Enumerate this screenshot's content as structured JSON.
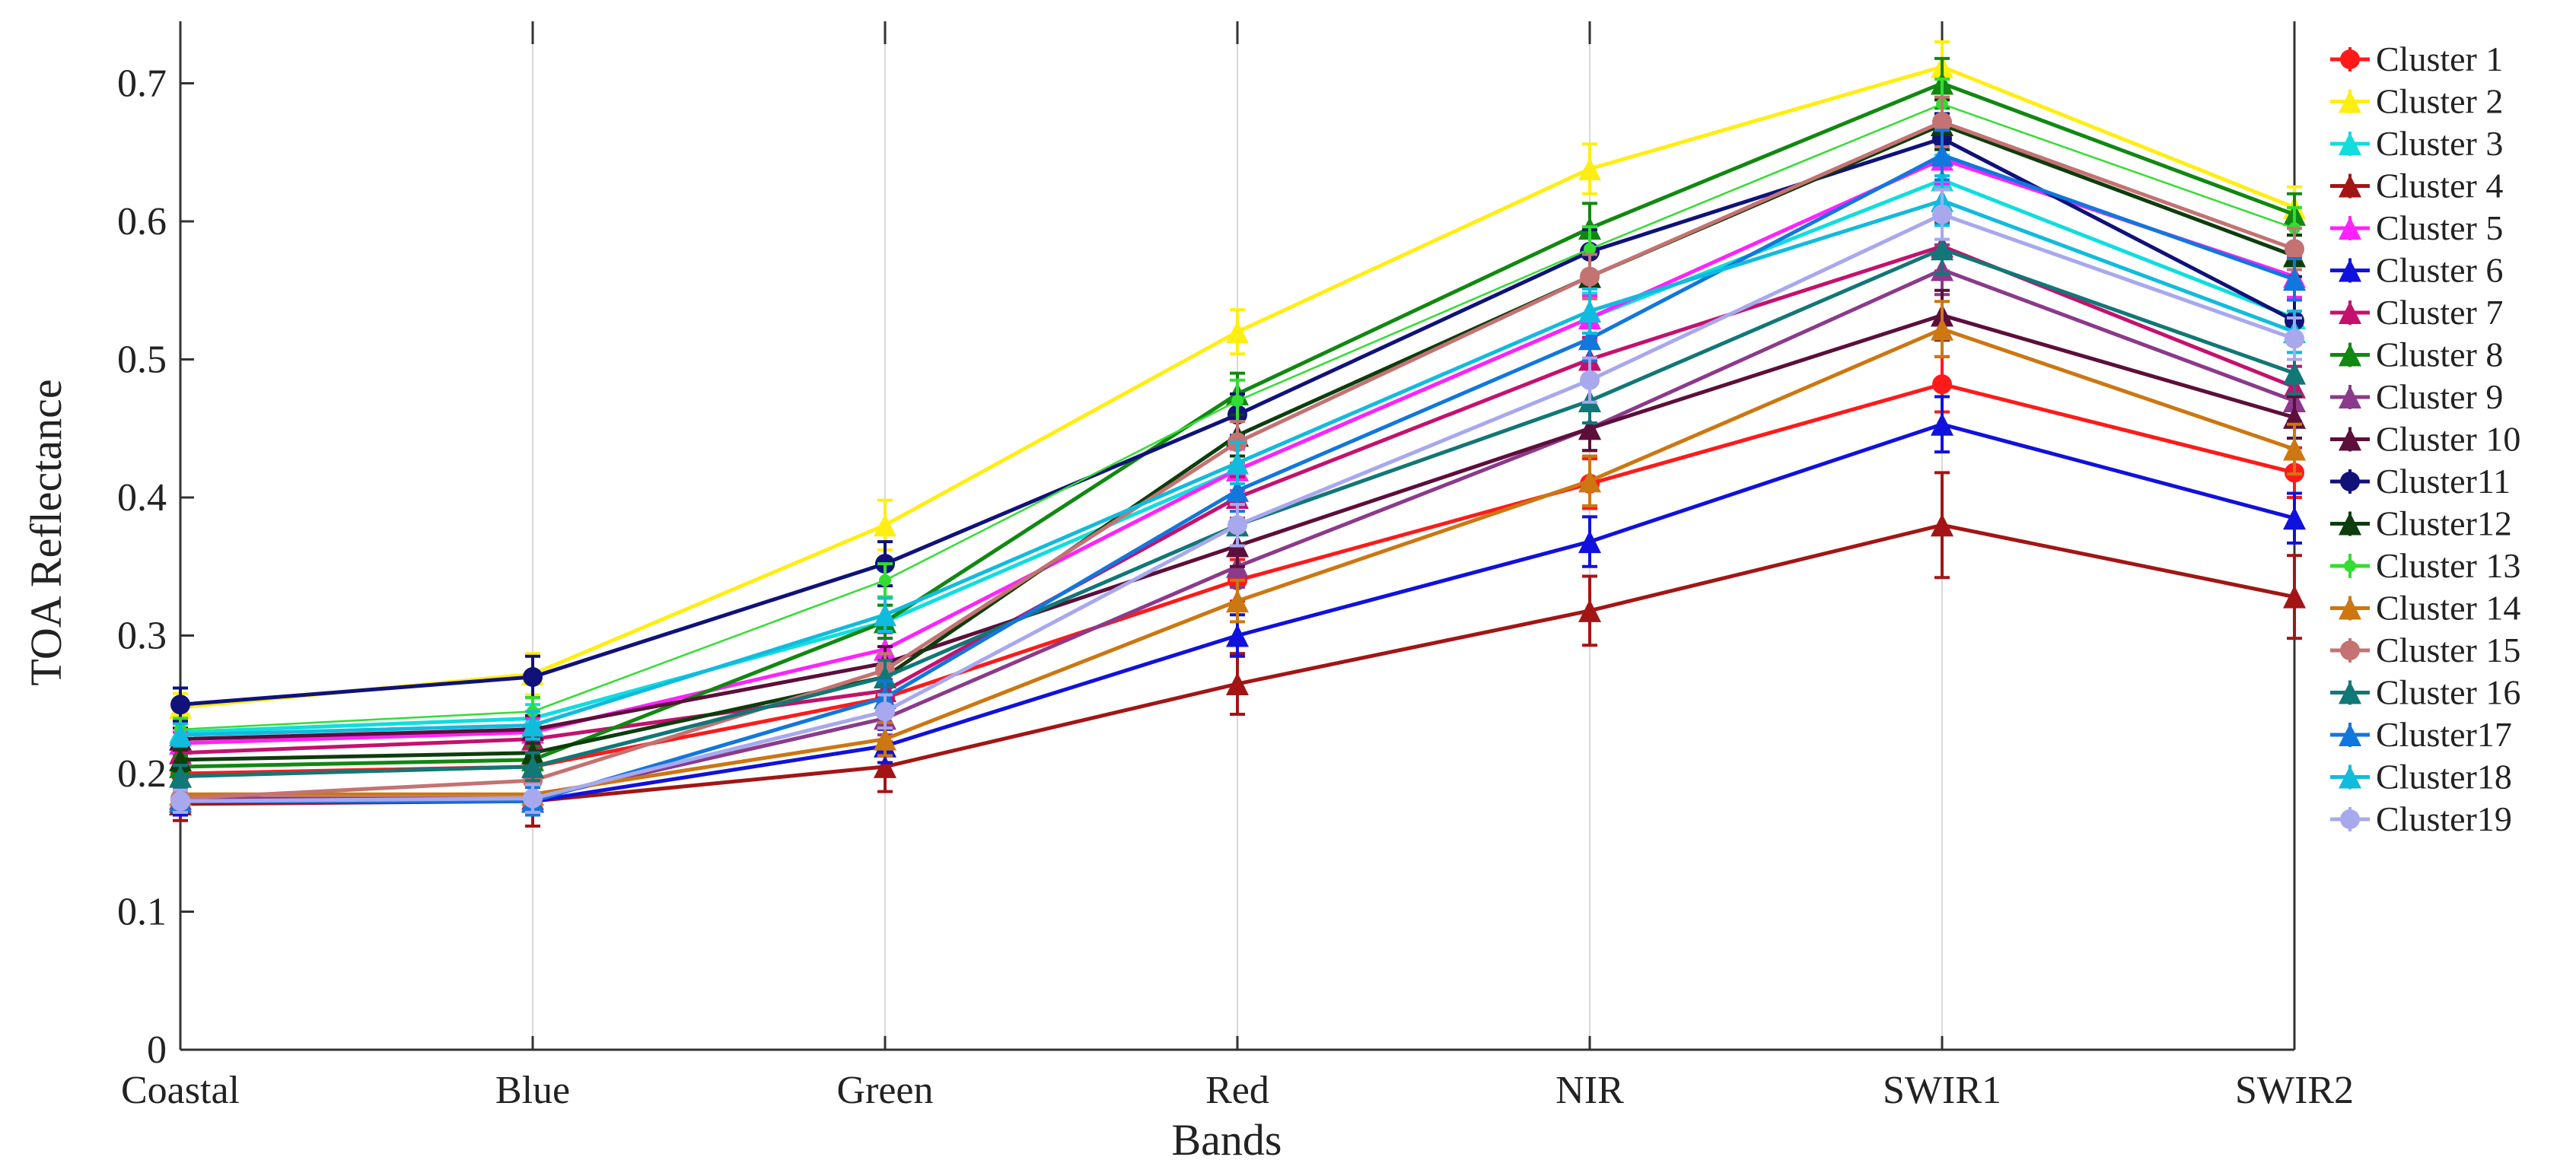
{
  "chart_data": {
    "type": "line",
    "title": "",
    "xlabel": "Bands",
    "ylabel": "TOA Reflectance",
    "categories": [
      "Coastal",
      "Blue",
      "Green",
      "Red",
      "NIR",
      "SWIR1",
      "SWIR2"
    ],
    "ylim": [
      0,
      0.75
    ],
    "yticks": [
      0,
      0.1,
      0.2,
      0.3,
      0.4,
      0.5,
      0.6,
      0.7
    ],
    "ytick_labels": [
      "0",
      "0.1",
      "0.2",
      "0.3",
      "0.4",
      "0.5",
      "0.6",
      "0.7"
    ],
    "grid": "vertical",
    "legend_position": "right",
    "error_bars": true,
    "series": [
      {
        "name": "Cluster 1",
        "color": "#ff1a1a",
        "marker": "circle",
        "values": [
          0.2,
          0.205,
          0.255,
          0.34,
          0.41,
          0.482,
          0.418
        ],
        "err": [
          0.008,
          0.008,
          0.01,
          0.015,
          0.018,
          0.02,
          0.018
        ]
      },
      {
        "name": "Cluster 2",
        "color": "#ffee11",
        "marker": "triangle",
        "values": [
          0.248,
          0.272,
          0.38,
          0.52,
          0.638,
          0.712,
          0.61
        ],
        "err": [
          0.01,
          0.015,
          0.018,
          0.016,
          0.018,
          0.018,
          0.015
        ]
      },
      {
        "name": "Cluster 3",
        "color": "#11dddd",
        "marker": "triangle",
        "values": [
          0.23,
          0.24,
          0.31,
          0.42,
          0.53,
          0.63,
          0.53
        ],
        "err": [
          0.01,
          0.01,
          0.012,
          0.015,
          0.018,
          0.018,
          0.015
        ]
      },
      {
        "name": "Cluster 4",
        "color": "#a31515",
        "marker": "triangle",
        "values": [
          0.178,
          0.18,
          0.205,
          0.265,
          0.318,
          0.38,
          0.328
        ],
        "err": [
          0.012,
          0.018,
          0.018,
          0.022,
          0.025,
          0.038,
          0.03
        ]
      },
      {
        "name": "Cluster 5",
        "color": "#ff22ff",
        "marker": "triangle",
        "values": [
          0.222,
          0.23,
          0.29,
          0.42,
          0.53,
          0.645,
          0.56
        ],
        "err": [
          0.008,
          0.01,
          0.012,
          0.015,
          0.016,
          0.018,
          0.015
        ]
      },
      {
        "name": "Cluster 6",
        "color": "#1111dd",
        "marker": "triangle",
        "values": [
          0.18,
          0.18,
          0.22,
          0.3,
          0.368,
          0.453,
          0.385
        ],
        "err": [
          0.01,
          0.01,
          0.012,
          0.015,
          0.018,
          0.02,
          0.018
        ]
      },
      {
        "name": "Cluster 7",
        "color": "#c4116e",
        "marker": "triangle",
        "values": [
          0.215,
          0.225,
          0.26,
          0.4,
          0.5,
          0.582,
          0.48
        ],
        "err": [
          0.008,
          0.01,
          0.012,
          0.015,
          0.016,
          0.018,
          0.015
        ]
      },
      {
        "name": "Cluster 8",
        "color": "#118811",
        "marker": "triangle",
        "values": [
          0.205,
          0.21,
          0.31,
          0.475,
          0.595,
          0.7,
          0.605
        ],
        "err": [
          0.008,
          0.01,
          0.012,
          0.015,
          0.018,
          0.018,
          0.015
        ]
      },
      {
        "name": "Cluster 9",
        "color": "#8b3a8b",
        "marker": "triangle",
        "values": [
          0.182,
          0.182,
          0.24,
          0.35,
          0.45,
          0.565,
          0.47
        ],
        "err": [
          0.008,
          0.01,
          0.012,
          0.015,
          0.016,
          0.018,
          0.015
        ]
      },
      {
        "name": "Cluster 10",
        "color": "#5c0f3a",
        "marker": "triangle",
        "values": [
          0.225,
          0.232,
          0.28,
          0.365,
          0.45,
          0.532,
          0.458
        ],
        "err": [
          0.008,
          0.01,
          0.012,
          0.015,
          0.016,
          0.018,
          0.015
        ]
      },
      {
        "name": "Cluster11",
        "color": "#10127a",
        "marker": "circle",
        "values": [
          0.25,
          0.27,
          0.352,
          0.46,
          0.578,
          0.66,
          0.528
        ],
        "err": [
          0.012,
          0.015,
          0.016,
          0.015,
          0.016,
          0.018,
          0.015
        ]
      },
      {
        "name": "Cluster12",
        "color": "#0d3d0d",
        "marker": "triangle",
        "values": [
          0.21,
          0.215,
          0.27,
          0.445,
          0.56,
          0.67,
          0.575
        ],
        "err": [
          0.008,
          0.01,
          0.012,
          0.015,
          0.016,
          0.018,
          0.015
        ]
      },
      {
        "name": "Cluster 13",
        "color": "#33dd33",
        "marker": "dot",
        "values": [
          0.232,
          0.245,
          0.34,
          0.47,
          0.58,
          0.685,
          0.595
        ],
        "err": [
          0.008,
          0.01,
          0.012,
          0.015,
          0.016,
          0.018,
          0.015
        ]
      },
      {
        "name": "Cluster 14",
        "color": "#cc7711",
        "marker": "triangle",
        "values": [
          0.185,
          0.185,
          0.225,
          0.325,
          0.412,
          0.522,
          0.435
        ],
        "err": [
          0.008,
          0.01,
          0.012,
          0.015,
          0.018,
          0.02,
          0.018
        ]
      },
      {
        "name": "Cluster 15",
        "color": "#c47272",
        "marker": "circle",
        "values": [
          0.182,
          0.195,
          0.275,
          0.44,
          0.56,
          0.672,
          0.58
        ],
        "err": [
          0.008,
          0.01,
          0.012,
          0.015,
          0.016,
          0.018,
          0.015
        ]
      },
      {
        "name": "Cluster 16",
        "color": "#117777",
        "marker": "triangle",
        "values": [
          0.198,
          0.205,
          0.27,
          0.38,
          0.47,
          0.58,
          0.49
        ],
        "err": [
          0.008,
          0.01,
          0.012,
          0.015,
          0.016,
          0.018,
          0.015
        ]
      },
      {
        "name": "Cluster17",
        "color": "#1177dd",
        "marker": "triangle",
        "values": [
          0.18,
          0.18,
          0.255,
          0.405,
          0.515,
          0.648,
          0.558
        ],
        "err": [
          0.008,
          0.01,
          0.012,
          0.015,
          0.016,
          0.018,
          0.015
        ]
      },
      {
        "name": "Cluster18",
        "color": "#11bbdd",
        "marker": "triangle",
        "values": [
          0.228,
          0.235,
          0.315,
          0.425,
          0.535,
          0.615,
          0.52
        ],
        "err": [
          0.008,
          0.01,
          0.012,
          0.015,
          0.016,
          0.018,
          0.015
        ]
      },
      {
        "name": "Cluster19",
        "color": "#a8a8ee",
        "marker": "circle",
        "values": [
          0.18,
          0.182,
          0.245,
          0.38,
          0.485,
          0.605,
          0.515
        ],
        "err": [
          0.008,
          0.01,
          0.012,
          0.015,
          0.016,
          0.018,
          0.015
        ]
      }
    ]
  }
}
